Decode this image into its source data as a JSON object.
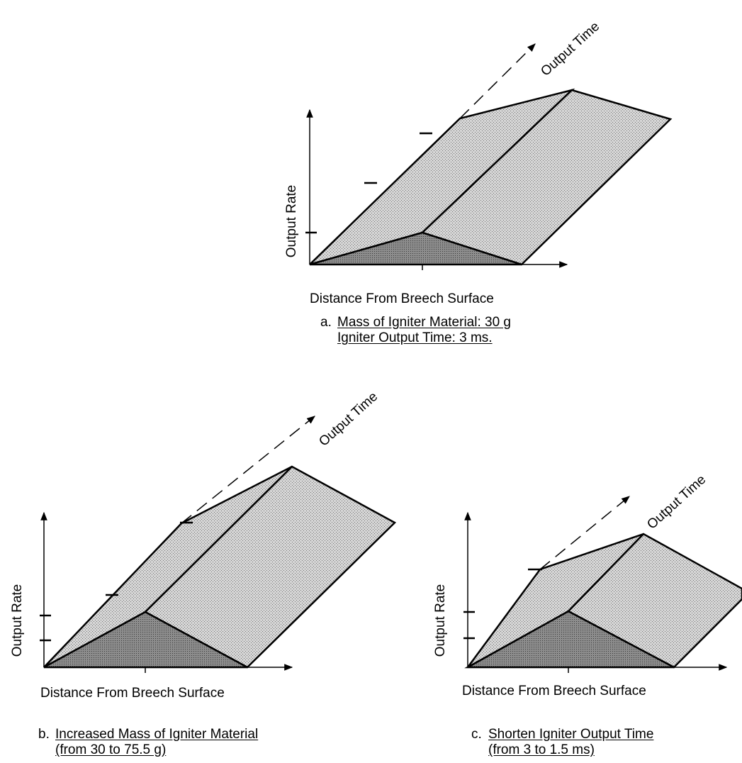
{
  "diagrams": [
    {
      "y_axis_label": "Output Rate",
      "x_axis_label": "Distance From Breech Surface",
      "depth_axis_label": "Output Time",
      "caption_letter": "a.",
      "caption_line1": "Mass of Igniter Material:  30 g",
      "caption_line2": "Igniter Output Time:  3 ms."
    },
    {
      "y_axis_label": "Output Rate",
      "x_axis_label": "Distance From Breech Surface",
      "depth_axis_label": "Output Time",
      "caption_letter": "b.",
      "caption_line1": "Increased Mass of Igniter Material",
      "caption_line2": "(from 30 to 75.5 g)"
    },
    {
      "y_axis_label": "Output Rate",
      "x_axis_label": "Distance From Breech Surface",
      "depth_axis_label": "Output Time",
      "caption_letter": "c.",
      "caption_line1": "Shorten Igniter Output Time",
      "caption_line2": "(from 3 to 1.5 ms)"
    }
  ],
  "colors": {
    "front_face": "#9a9a9a",
    "top_faces": "#c8c8c8",
    "line": "#000000"
  }
}
